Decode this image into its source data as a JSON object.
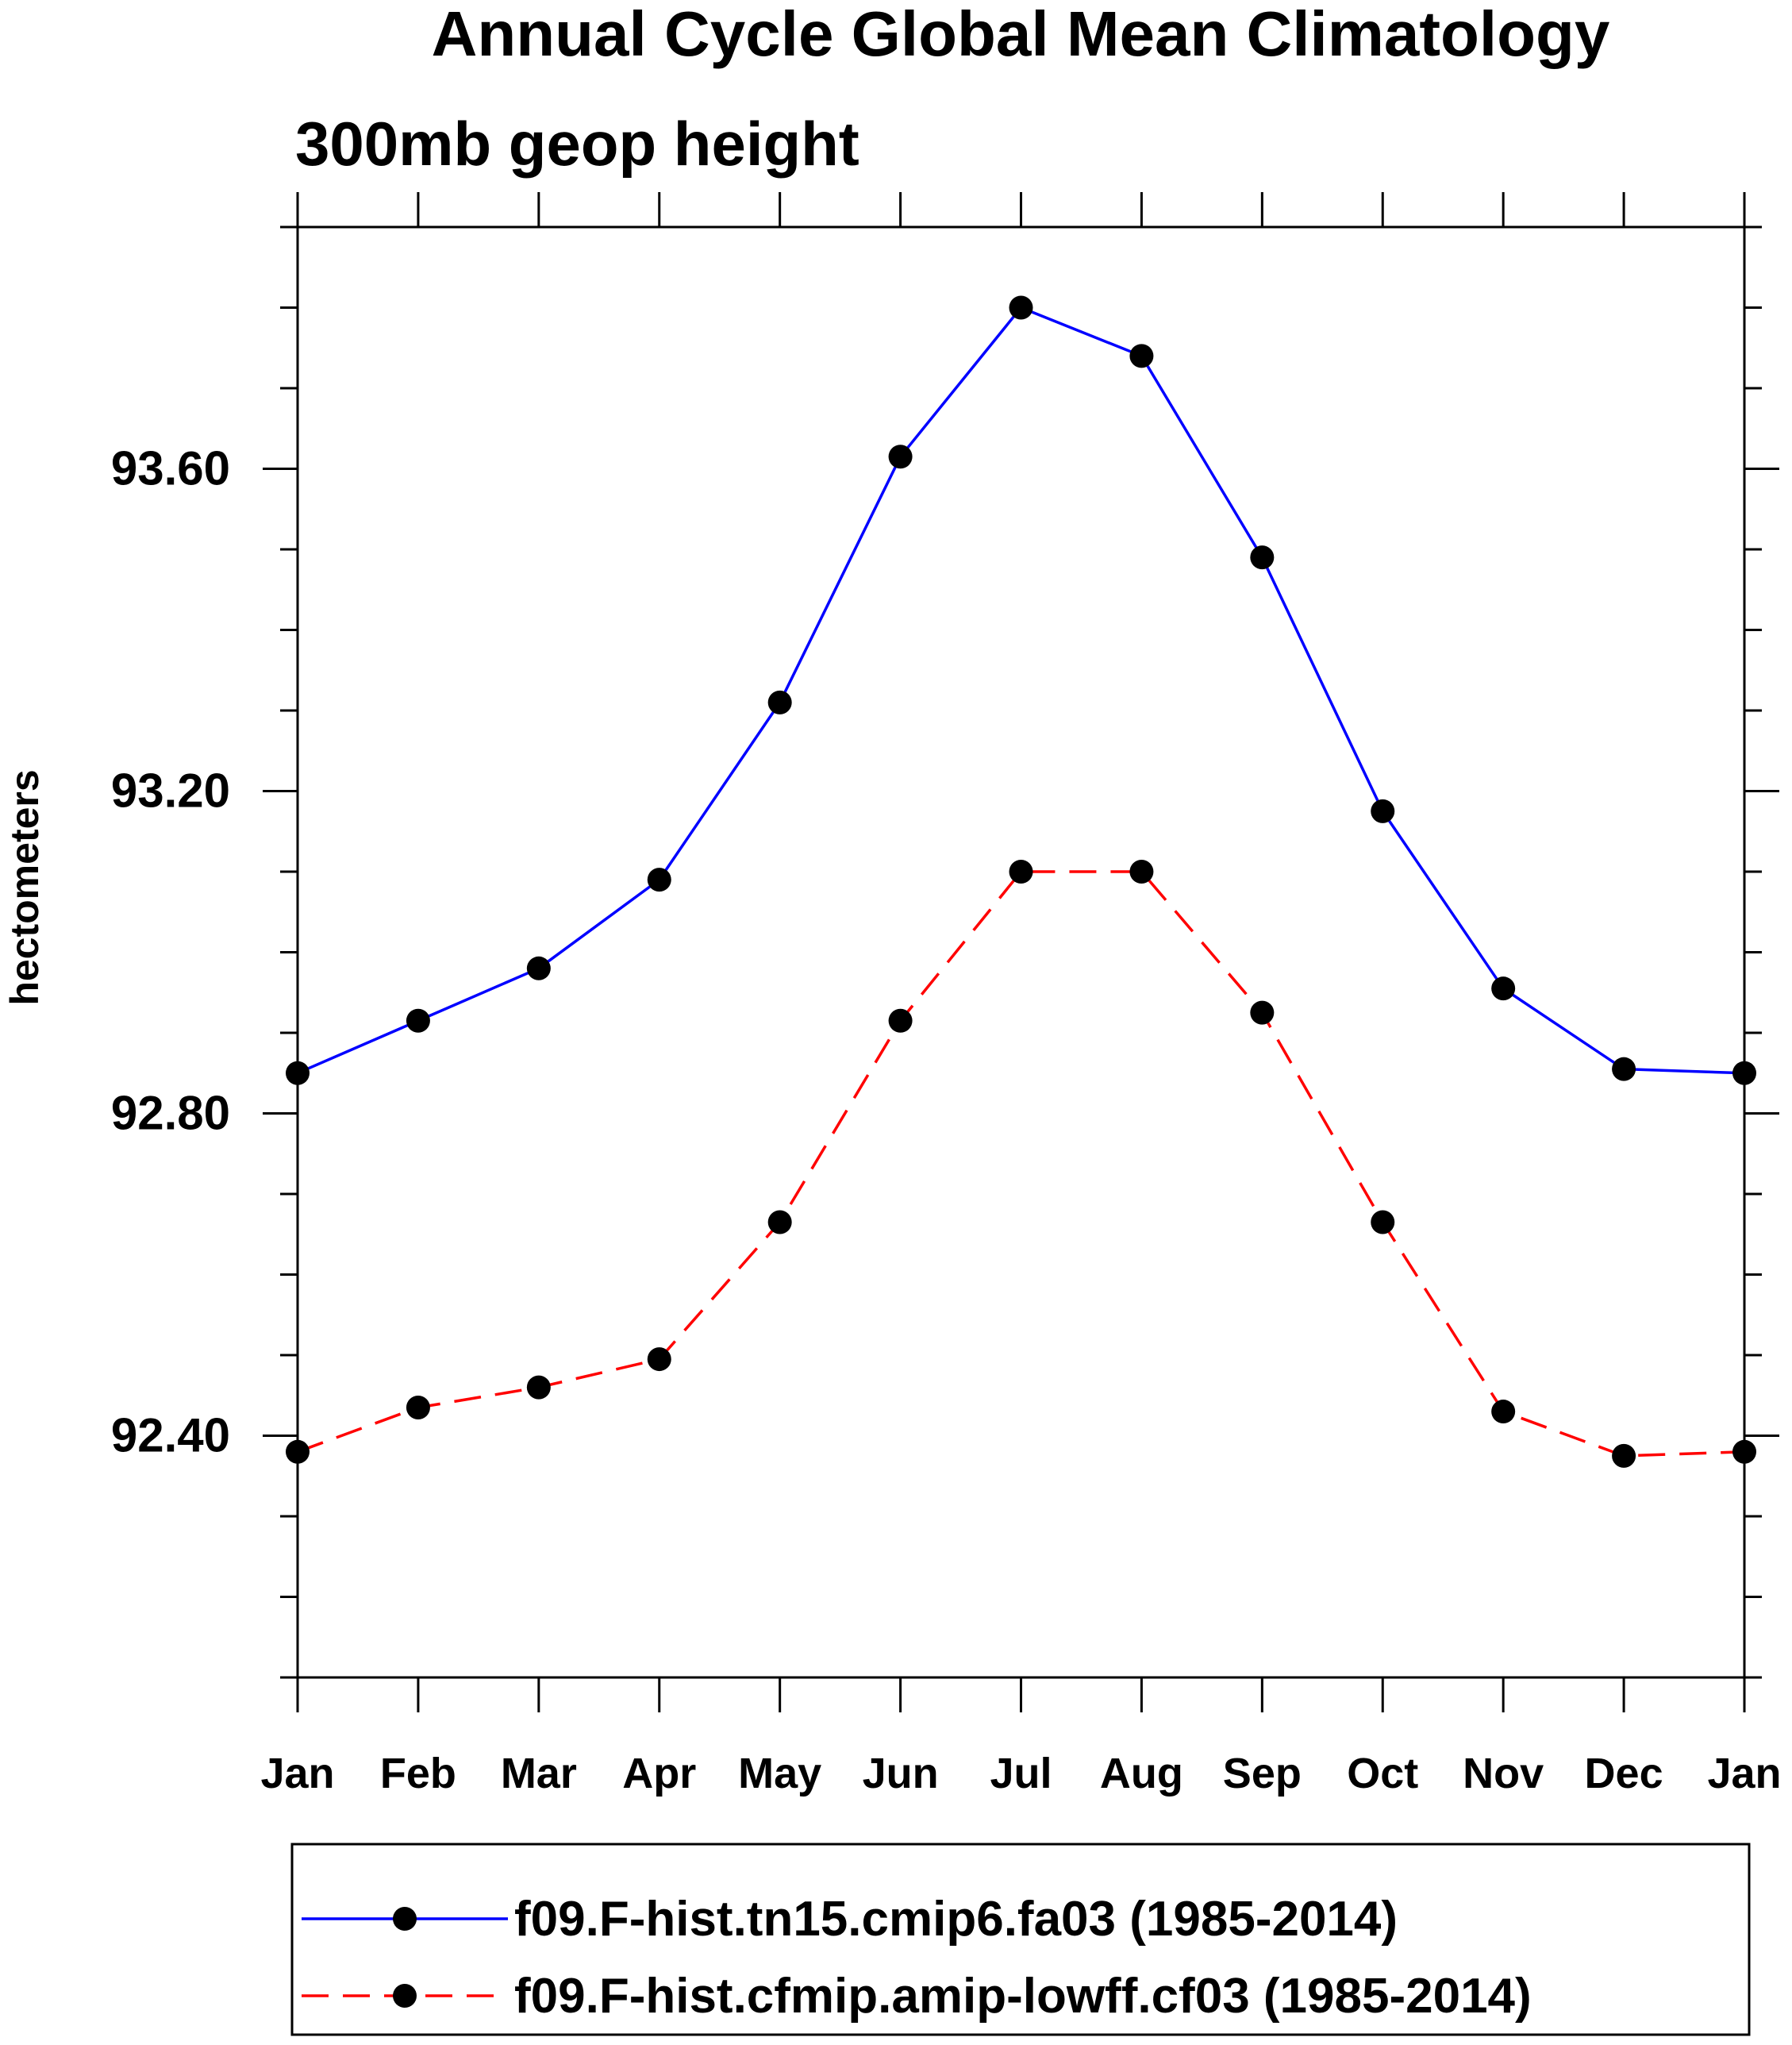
{
  "chart_data": {
    "type": "line",
    "title": "Annual Cycle Global Mean Climatology",
    "subtitle": "300mb geop height",
    "ylabel": "hectometers",
    "xlabel": "",
    "categories": [
      "Jan",
      "Feb",
      "Mar",
      "Apr",
      "May",
      "Jun",
      "Jul",
      "Aug",
      "Sep",
      "Oct",
      "Nov",
      "Dec",
      "Jan"
    ],
    "ylim": [
      92.1,
      93.9
    ],
    "yticks": [
      92.4,
      92.8,
      93.2,
      93.6
    ],
    "ytick_labels": [
      "92.40",
      "92.80",
      "93.20",
      "93.60"
    ],
    "y_minor_step": 0.1,
    "grid": false,
    "legend_position": "bottom",
    "series": [
      {
        "name": "f09.F-hist.tn15.cmip6.fa03 (1985-2014)",
        "color": "#0000ff",
        "line_style": "solid",
        "marker": "filled-circle",
        "values": [
          92.85,
          92.915,
          92.98,
          93.09,
          93.31,
          93.615,
          93.8,
          93.74,
          93.49,
          93.175,
          92.955,
          92.855,
          92.85
        ]
      },
      {
        "name": "f09.F-hist.cfmip.amip-lowff.cf03 (1985-2014)",
        "color": "#ff0000",
        "line_style": "dashed",
        "marker": "filled-circle",
        "values": [
          92.38,
          92.435,
          92.46,
          92.495,
          92.665,
          92.915,
          93.1,
          93.1,
          92.925,
          92.665,
          92.43,
          92.375,
          92.38
        ]
      }
    ]
  }
}
